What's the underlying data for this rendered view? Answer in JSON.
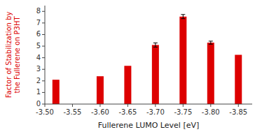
{
  "chart_data": {
    "type": "bar",
    "x": [
      -3.52,
      -3.6,
      -3.65,
      -3.7,
      -3.75,
      -3.8,
      -3.85
    ],
    "values": [
      2.1,
      2.4,
      3.3,
      5.1,
      7.55,
      5.3,
      4.25
    ],
    "errors": [
      0.0,
      0.0,
      0.0,
      0.18,
      0.18,
      0.13,
      0.0
    ],
    "color": "#DD0000",
    "xlim": [
      -3.5,
      -3.875
    ],
    "xticks": [
      {
        "value": -3.5,
        "label": "-3.50"
      },
      -3.55,
      {
        "value": -3.6,
        "label": "-3.60"
      },
      -3.65,
      {
        "value": -3.7,
        "label": "-3.70"
      },
      -3.75,
      {
        "value": -3.8,
        "label": "-3.80"
      },
      -3.85
    ],
    "ylim": [
      0,
      8.5
    ],
    "yticks": [
      0,
      1,
      2,
      3,
      4,
      5,
      6,
      7,
      8
    ],
    "xlabel": "Fullerene LUMO Level [eV]",
    "ylabel": "Factor of Stabilization by\nthe Fullerene on P3HT",
    "grid": false
  }
}
